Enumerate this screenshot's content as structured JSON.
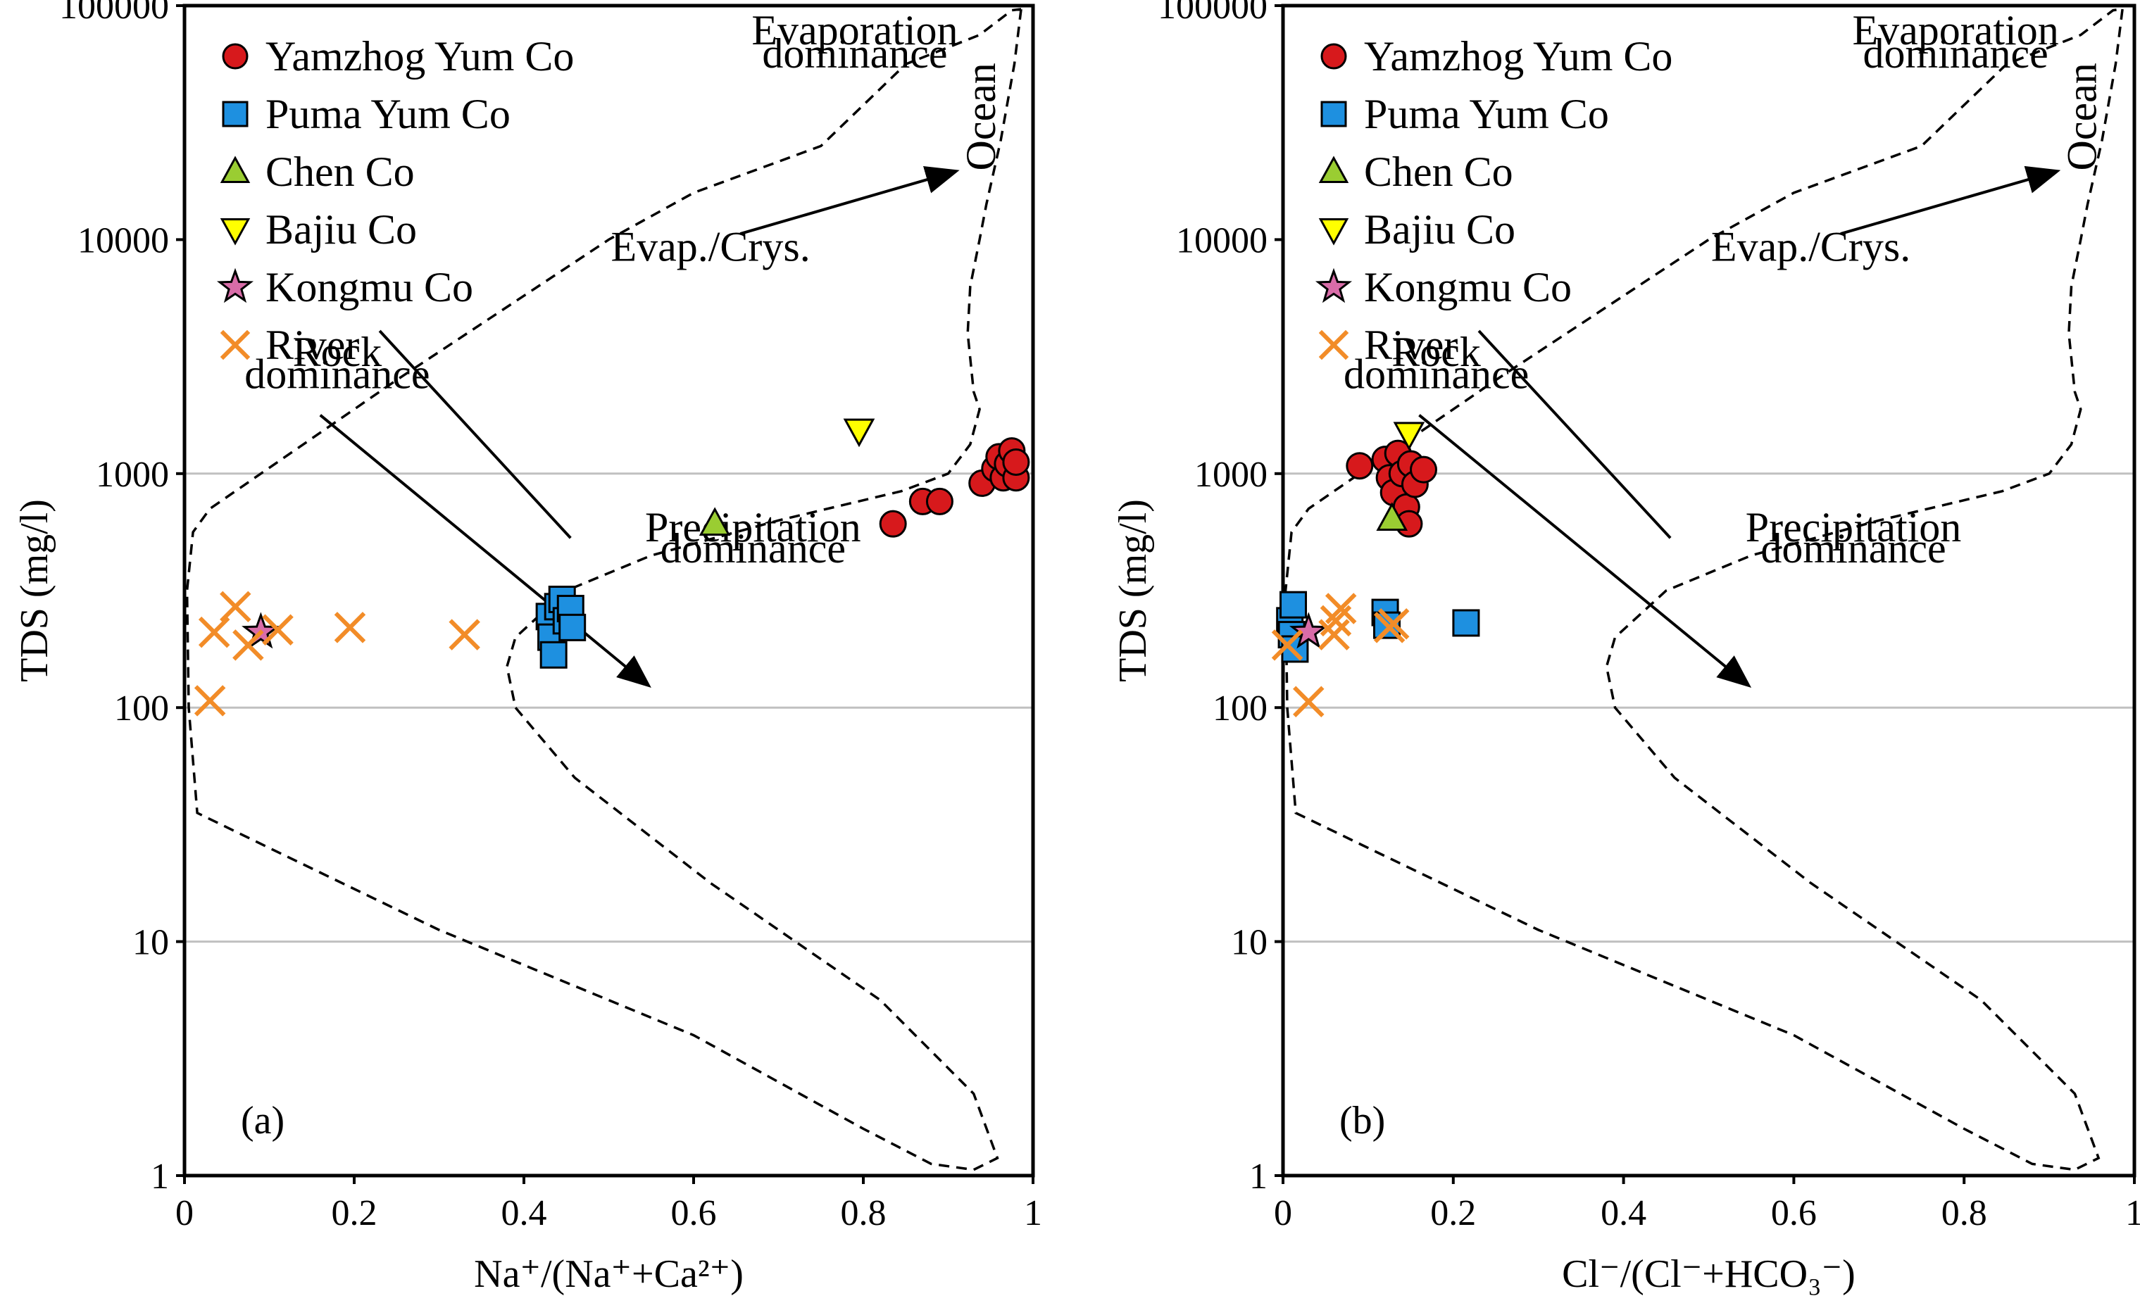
{
  "chart_data": [
    {
      "type": "scatter",
      "panel_label": "(a)",
      "xlabel": "Na⁺/(Na⁺+Ca²⁺)",
      "ylabel": "TDS (mg/l)",
      "xlim": [
        0,
        1
      ],
      "ylim": [
        1,
        100000
      ],
      "y_scale": "log",
      "x_ticks": [
        "0",
        "0.2",
        "0.4",
        "0.6",
        "0.8",
        "1"
      ],
      "y_ticks": [
        "1",
        "10",
        "100",
        "1000",
        "10000",
        "100000"
      ],
      "grid": "horizontal",
      "legend_position": "top-left",
      "annotations": {
        "evaporation": [
          "Evaporation",
          "dominance"
        ],
        "ocean": "Ocean",
        "evap_crys": "Evap./Crys.",
        "rock": [
          "Rock",
          "dominance"
        ],
        "precipitation": [
          "Precipitation",
          "dominance"
        ]
      },
      "series": [
        {
          "name": "Yamzhog Yum Co",
          "marker": "circle",
          "color": "#d7191c",
          "points": [
            [
              0.835,
              610
            ],
            [
              0.87,
              760
            ],
            [
              0.89,
              760
            ],
            [
              0.94,
              910
            ],
            [
              0.955,
              1050
            ],
            [
              0.96,
              1180
            ],
            [
              0.965,
              960
            ],
            [
              0.97,
              1100
            ],
            [
              0.975,
              1250
            ],
            [
              0.98,
              960
            ],
            [
              0.98,
              1120
            ]
          ]
        },
        {
          "name": "Puma Yum Co",
          "marker": "square",
          "color": "#1e90e0",
          "points": [
            [
              0.43,
              245
            ],
            [
              0.432,
              200
            ],
            [
              0.435,
              168
            ],
            [
              0.44,
              270
            ],
            [
              0.445,
              290
            ],
            [
              0.45,
              235
            ],
            [
              0.455,
              265
            ],
            [
              0.457,
              220
            ]
          ]
        },
        {
          "name": "Chen Co",
          "marker": "triangle-up",
          "color": "#9acd32",
          "points": [
            [
              0.625,
              610
            ]
          ]
        },
        {
          "name": "Bajiu Co",
          "marker": "triangle-down",
          "color": "#ffff00",
          "points": [
            [
              0.795,
              1530
            ]
          ]
        },
        {
          "name": "Kongmu Co",
          "marker": "star",
          "color": "#d86ca8",
          "points": [
            [
              0.09,
              210
            ]
          ]
        },
        {
          "name": "River",
          "marker": "x",
          "color": "#f28c28",
          "points": [
            [
              0.03,
              107
            ],
            [
              0.035,
              210
            ],
            [
              0.06,
              270
            ],
            [
              0.075,
              185
            ],
            [
              0.11,
              215
            ],
            [
              0.195,
              220
            ],
            [
              0.33,
              205
            ]
          ]
        }
      ]
    },
    {
      "type": "scatter",
      "panel_label": "(b)",
      "xlabel": "Cl⁻/(Cl⁻+HCO₃⁻)",
      "ylabel": "TDS (mg/l)",
      "xlim": [
        0,
        1
      ],
      "ylim": [
        1,
        100000
      ],
      "y_scale": "log",
      "x_ticks": [
        "0",
        "0.2",
        "0.4",
        "0.6",
        "0.8",
        "1"
      ],
      "y_ticks": [
        "1",
        "10",
        "100",
        "1000",
        "10000",
        "100000"
      ],
      "grid": "horizontal",
      "legend_position": "top-left",
      "annotations": {
        "evaporation": [
          "Evaporation",
          "dominance"
        ],
        "ocean": "Ocean",
        "evap_crys": "Evap./Crys.",
        "rock": [
          "Rock",
          "dominance"
        ],
        "precipitation": [
          "Precipitation",
          "dominance"
        ]
      },
      "series": [
        {
          "name": "Yamzhog Yum Co",
          "marker": "circle",
          "color": "#d7191c",
          "points": [
            [
              0.09,
              1080
            ],
            [
              0.12,
              1150
            ],
            [
              0.125,
              960
            ],
            [
              0.13,
              830
            ],
            [
              0.135,
              1220
            ],
            [
              0.14,
              1000
            ],
            [
              0.145,
              720
            ],
            [
              0.148,
              610
            ],
            [
              0.15,
              1100
            ],
            [
              0.155,
              900
            ],
            [
              0.165,
              1040
            ]
          ]
        },
        {
          "name": "Puma Yum Co",
          "marker": "square",
          "color": "#1e90e0",
          "points": [
            [
              0.008,
              235
            ],
            [
              0.01,
              205
            ],
            [
              0.012,
              275
            ],
            [
              0.014,
              178
            ],
            [
              0.12,
              255
            ],
            [
              0.122,
              225
            ],
            [
              0.215,
              230
            ]
          ]
        },
        {
          "name": "Chen Co",
          "marker": "triangle-up",
          "color": "#9acd32",
          "points": [
            [
              0.128,
              640
            ]
          ]
        },
        {
          "name": "Bajiu Co",
          "marker": "triangle-down",
          "color": "#ffff00",
          "points": [
            [
              0.148,
              1480
            ]
          ]
        },
        {
          "name": "Kongmu Co",
          "marker": "star",
          "color": "#d86ca8",
          "points": [
            [
              0.03,
              210
            ]
          ]
        },
        {
          "name": "River",
          "marker": "x",
          "color": "#f28c28",
          "points": [
            [
              0.005,
              185
            ],
            [
              0.03,
              106
            ],
            [
              0.06,
              205
            ],
            [
              0.062,
              235
            ],
            [
              0.068,
              265
            ],
            [
              0.125,
              220
            ],
            [
              0.13,
              228
            ]
          ]
        }
      ]
    }
  ]
}
